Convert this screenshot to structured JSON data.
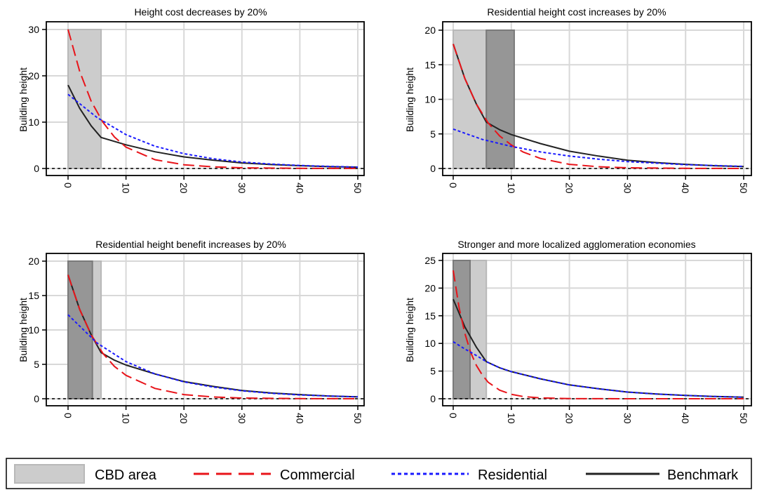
{
  "chart_data": [
    {
      "type": "line",
      "title": "Height cost decreases by 20%",
      "ylabel": "Building height",
      "xlim": [
        0,
        50
      ],
      "ylim": [
        0,
        30
      ],
      "xticks": [
        "0",
        "10",
        "20",
        "30",
        "40",
        "50"
      ],
      "yticks": [
        "0",
        "10",
        "20",
        "30"
      ],
      "grid": true,
      "shaded": [
        {
          "kind": "light",
          "x0": 0,
          "x1": 5.7
        }
      ],
      "series": [
        {
          "name": "Commercial",
          "x": [
            0,
            2,
            4,
            6,
            8,
            10,
            15,
            20,
            25,
            30,
            40,
            50
          ],
          "y": [
            30,
            21,
            14.5,
            10,
            6.8,
            4.6,
            1.9,
            0.8,
            0.35,
            0.15,
            0.03,
            0.01
          ]
        },
        {
          "name": "Residential",
          "x": [
            0,
            5,
            10,
            15,
            20,
            25,
            30,
            35,
            40,
            45,
            50
          ],
          "y": [
            16,
            11,
            7.3,
            4.8,
            3.2,
            2.1,
            1.4,
            0.95,
            0.65,
            0.45,
            0.3
          ]
        },
        {
          "name": "Benchmark",
          "x": [
            0,
            2,
            4,
            5.7,
            10,
            15,
            20,
            25,
            30,
            35,
            40,
            45,
            50
          ],
          "y": [
            18,
            13,
            9.2,
            6.7,
            5.1,
            3.6,
            2.5,
            1.8,
            1.2,
            0.85,
            0.6,
            0.4,
            0.28
          ]
        }
      ]
    },
    {
      "type": "line",
      "title": "Residential height cost increases by 20%",
      "ylabel": "Building height",
      "xlim": [
        0,
        50
      ],
      "ylim": [
        0,
        20
      ],
      "xticks": [
        "0",
        "10",
        "20",
        "30",
        "40",
        "50"
      ],
      "yticks": [
        "0",
        "5",
        "10",
        "15",
        "20"
      ],
      "grid": true,
      "shaded": [
        {
          "kind": "light",
          "x0": 0,
          "x1": 5.7
        },
        {
          "kind": "dark",
          "x0": 5.7,
          "x1": 10.5
        }
      ],
      "series": [
        {
          "name": "Commercial",
          "x": [
            0,
            2,
            4,
            6,
            8,
            10,
            12,
            15,
            20,
            25,
            30,
            40,
            50
          ],
          "y": [
            18,
            13,
            9.3,
            6.6,
            4.7,
            3.4,
            2.4,
            1.45,
            0.6,
            0.25,
            0.1,
            0.02,
            0.0
          ]
        },
        {
          "name": "Residential",
          "x": [
            0,
            5,
            10,
            15,
            20,
            25,
            30,
            40,
            50
          ],
          "y": [
            5.7,
            4.2,
            3.2,
            2.4,
            1.8,
            1.35,
            1.0,
            0.55,
            0.3
          ]
        },
        {
          "name": "Benchmark",
          "x": [
            0,
            2,
            4,
            5.7,
            8,
            10,
            15,
            20,
            25,
            30,
            35,
            40,
            45,
            50
          ],
          "y": [
            18,
            13,
            9.3,
            6.7,
            5.6,
            4.9,
            3.6,
            2.5,
            1.8,
            1.2,
            0.85,
            0.6,
            0.4,
            0.28
          ]
        }
      ]
    },
    {
      "type": "line",
      "title": "Residential height benefit increases by 20%",
      "ylabel": "Building height",
      "xlim": [
        0,
        50
      ],
      "ylim": [
        0,
        20
      ],
      "xticks": [
        "0",
        "10",
        "20",
        "30",
        "40",
        "50"
      ],
      "yticks": [
        "0",
        "5",
        "10",
        "15",
        "20"
      ],
      "grid": true,
      "shaded": [
        {
          "kind": "light",
          "x0": 0,
          "x1": 5.7
        },
        {
          "kind": "dark",
          "x0": 0,
          "x1": 4.2
        }
      ],
      "series": [
        {
          "name": "Commercial",
          "x": [
            0,
            2,
            4,
            6,
            8,
            10,
            15,
            20,
            25,
            30,
            40,
            50
          ],
          "y": [
            18,
            13,
            9.3,
            6.6,
            4.7,
            3.4,
            1.5,
            0.6,
            0.25,
            0.1,
            0.02,
            0.0
          ]
        },
        {
          "name": "Residential",
          "x": [
            0,
            5,
            10,
            15,
            20,
            25,
            30,
            35,
            40,
            45,
            50
          ],
          "y": [
            12.2,
            8.1,
            5.4,
            3.6,
            2.45,
            1.7,
            1.15,
            0.8,
            0.55,
            0.4,
            0.28
          ]
        },
        {
          "name": "Benchmark",
          "x": [
            0,
            2,
            4,
            5.7,
            8,
            10,
            15,
            20,
            25,
            30,
            35,
            40,
            45,
            50
          ],
          "y": [
            18,
            13,
            9.3,
            6.7,
            5.6,
            4.9,
            3.6,
            2.5,
            1.8,
            1.2,
            0.85,
            0.6,
            0.4,
            0.28
          ]
        }
      ]
    },
    {
      "type": "line",
      "title": "Stronger and more localized agglomeration economies",
      "ylabel": "Building height",
      "xlim": [
        0,
        50
      ],
      "ylim": [
        0,
        25
      ],
      "xticks": [
        "0",
        "10",
        "20",
        "30",
        "40",
        "50"
      ],
      "yticks": [
        "0",
        "5",
        "10",
        "15",
        "20",
        "25"
      ],
      "grid": true,
      "shaded": [
        {
          "kind": "light",
          "x0": 0,
          "x1": 5.7
        },
        {
          "kind": "dark",
          "x0": 0,
          "x1": 2.9
        }
      ],
      "series": [
        {
          "name": "Commercial",
          "x": [
            0,
            1,
            2,
            3,
            4,
            5,
            6,
            8,
            10,
            12,
            15,
            20,
            30,
            50
          ],
          "y": [
            23.2,
            16.5,
            11.8,
            8.4,
            6,
            4.3,
            3.0,
            1.55,
            0.8,
            0.4,
            0.15,
            0.03,
            0.0,
            0.0
          ]
        },
        {
          "name": "Residential",
          "x": [
            0,
            2,
            4,
            5.7,
            8,
            10,
            15,
            20,
            25,
            30,
            35,
            40,
            45,
            50
          ],
          "y": [
            10.3,
            9.0,
            7.8,
            6.7,
            5.6,
            4.9,
            3.6,
            2.5,
            1.8,
            1.2,
            0.85,
            0.6,
            0.4,
            0.28
          ]
        },
        {
          "name": "Benchmark",
          "x": [
            0,
            2,
            4,
            5.7,
            8,
            10,
            15,
            20,
            25,
            30,
            35,
            40,
            45,
            50
          ],
          "y": [
            18,
            13,
            9.3,
            6.7,
            5.6,
            4.9,
            3.6,
            2.5,
            1.8,
            1.2,
            0.85,
            0.6,
            0.4,
            0.28
          ]
        }
      ]
    }
  ],
  "legend": {
    "placement": "bottom",
    "items": [
      {
        "label": "CBD area",
        "kind": "area"
      },
      {
        "label": "Commercial",
        "kind": "commercial"
      },
      {
        "label": "Residential",
        "kind": "residential"
      },
      {
        "label": "Benchmark",
        "kind": "benchmark"
      }
    ]
  },
  "colors": {
    "commercial": "#e8141a",
    "residential": "#1a1aff",
    "benchmark": "#222222",
    "cbd_light": "#cccccc",
    "cbd_dark": "#969696",
    "grid": "#d8d8d8"
  }
}
